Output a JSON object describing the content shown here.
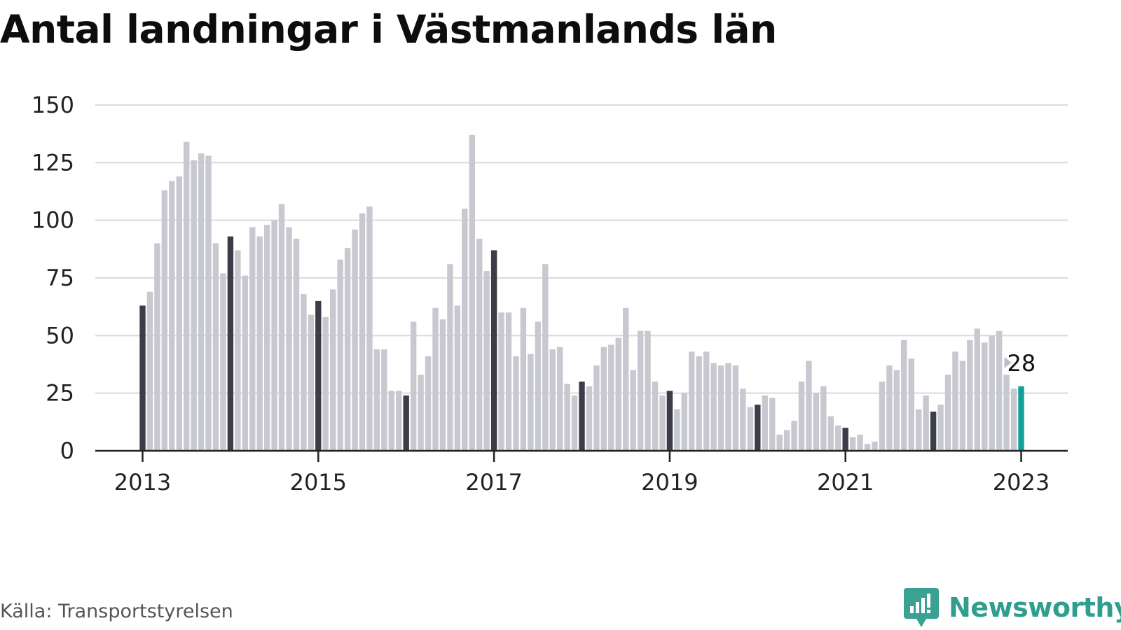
{
  "title": "Antal landningar i Västmanlands län",
  "source": "Källa: Transportstyrelsen",
  "logo": {
    "text": "Newsworthy"
  },
  "colors": {
    "bar": "#c8c8d0",
    "january_bar": "#3d3d4a",
    "latest_bar": "#14a09a",
    "grid": "#dadade",
    "axis": "#222222",
    "logo": "#3aa193"
  },
  "chart_data": {
    "type": "bar",
    "xlabel": "",
    "ylabel": "",
    "ylim": [
      0,
      150
    ],
    "yticks": [
      0,
      25,
      50,
      75,
      100,
      125,
      150
    ],
    "xticks": [
      "2013",
      "2015",
      "2017",
      "2019",
      "2021",
      "2023"
    ],
    "grid": true,
    "start": "2013-01",
    "frequency": "monthly",
    "values": [
      63,
      69,
      90,
      113,
      117,
      119,
      134,
      126,
      129,
      128,
      90,
      77,
      93,
      87,
      76,
      97,
      93,
      98,
      100,
      107,
      97,
      92,
      68,
      59,
      65,
      58,
      70,
      83,
      88,
      96,
      103,
      106,
      44,
      44,
      26,
      26,
      24,
      56,
      33,
      41,
      62,
      57,
      81,
      63,
      105,
      137,
      92,
      78,
      87,
      60,
      60,
      41,
      62,
      42,
      56,
      81,
      44,
      45,
      29,
      24,
      30,
      28,
      37,
      45,
      46,
      49,
      62,
      35,
      52,
      52,
      30,
      24,
      26,
      18,
      25,
      43,
      41,
      43,
      38,
      37,
      38,
      37,
      27,
      19,
      20,
      24,
      23,
      7,
      9,
      13,
      30,
      39,
      25,
      28,
      15,
      11,
      10,
      6,
      7,
      3,
      4,
      30,
      37,
      35,
      48,
      40,
      18,
      24,
      17,
      20,
      33,
      43,
      39,
      48,
      53,
      47,
      50,
      52,
      33,
      27,
      28
    ],
    "annotation": {
      "label": "28"
    }
  }
}
